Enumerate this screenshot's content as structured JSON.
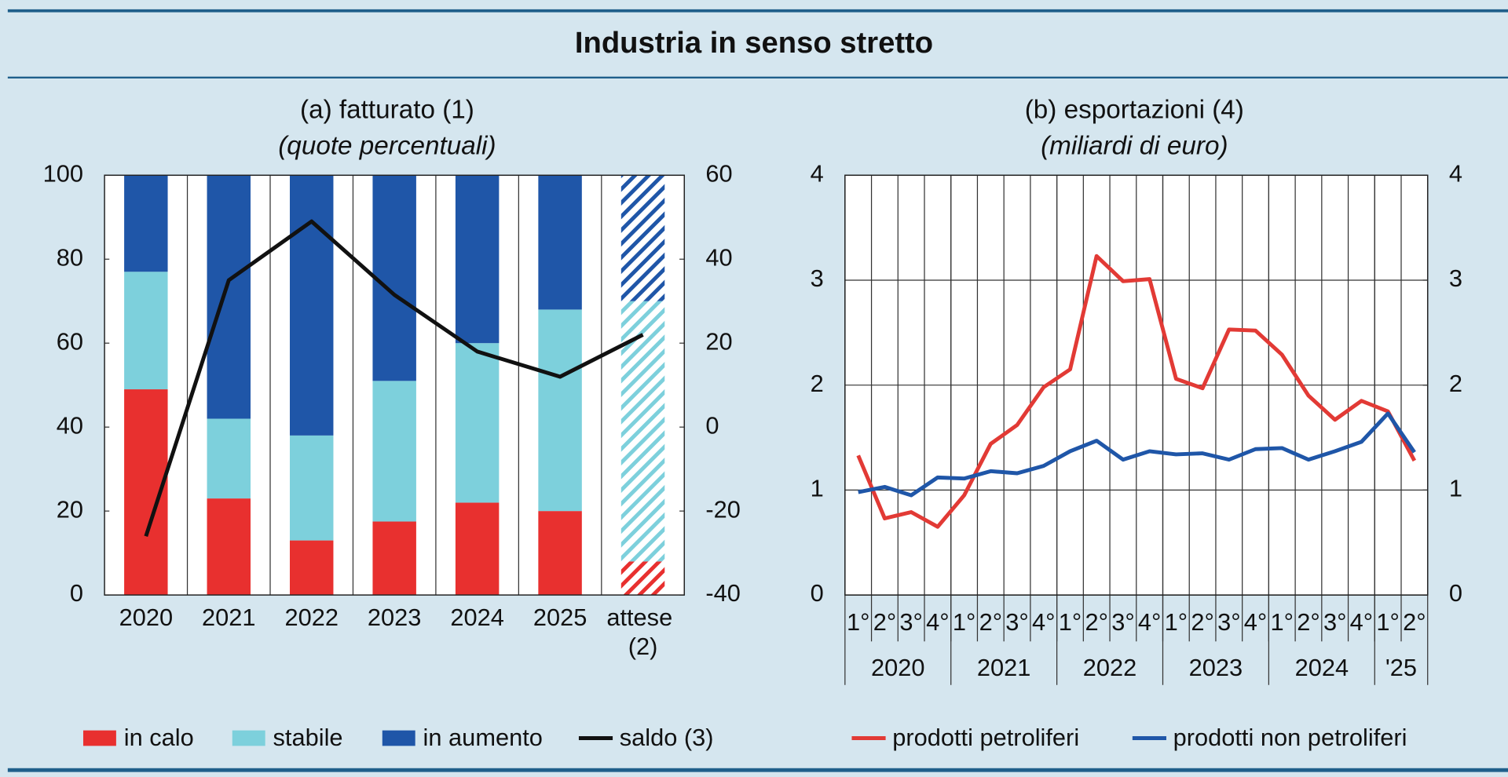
{
  "title": "Industria in senso stretto",
  "chart_data": [
    {
      "type": "bar",
      "title": "(a) fatturato (1)",
      "subtitle": "(quote percentuali)",
      "categories": [
        "2020",
        "2021",
        "2022",
        "2023",
        "2024",
        "2025",
        "attese (2)"
      ],
      "hatched": [
        false,
        false,
        false,
        false,
        false,
        false,
        true
      ],
      "series": [
        {
          "name": "in calo",
          "color": "#e8302f",
          "values": [
            49,
            23,
            13,
            17.5,
            22,
            20,
            8
          ]
        },
        {
          "name": "stabile",
          "color": "#7dd0dc",
          "values": [
            28,
            19,
            25,
            33.5,
            38,
            48,
            62
          ]
        },
        {
          "name": "in aumento",
          "color": "#1f56a8",
          "values": [
            23,
            58,
            62,
            49,
            40,
            32,
            30
          ]
        },
        {
          "name": "saldo (3)",
          "color": "#111111",
          "type": "line",
          "axis": "y2",
          "values": [
            -26,
            35,
            49,
            31.5,
            18,
            12,
            22
          ]
        }
      ],
      "ylim": [
        0,
        100
      ],
      "yticks": [
        0,
        20,
        40,
        60,
        80,
        100
      ],
      "y2lim": [
        -40,
        60
      ],
      "y2ticks": [
        -40,
        -20,
        0,
        20,
        40,
        60
      ],
      "grid": false
    },
    {
      "type": "line",
      "title": "(b) esportazioni (4)",
      "subtitle": "(miliardi di euro)",
      "categories": [
        "1°",
        "2°",
        "3°",
        "4°",
        "1°",
        "2°",
        "3°",
        "4°",
        "1°",
        "2°",
        "3°",
        "4°",
        "1°",
        "2°",
        "3°",
        "4°",
        "1°",
        "2°",
        "3°",
        "4°",
        "1°",
        "2°"
      ],
      "year_groups": [
        {
          "label": "2020",
          "count": 4
        },
        {
          "label": "2021",
          "count": 4
        },
        {
          "label": "2022",
          "count": 4
        },
        {
          "label": "2023",
          "count": 4
        },
        {
          "label": "2024",
          "count": 4
        },
        {
          "label": "'25",
          "count": 2
        }
      ],
      "series": [
        {
          "name": "prodotti petroliferi",
          "color": "#e23a35",
          "values": [
            1.33,
            0.73,
            0.79,
            0.65,
            0.95,
            1.44,
            1.62,
            1.98,
            2.15,
            3.23,
            2.99,
            3.01,
            2.06,
            1.97,
            2.53,
            2.52,
            2.29,
            1.9,
            1.67,
            1.85,
            1.75,
            1.28
          ]
        },
        {
          "name": "prodotti non petroliferi",
          "color": "#1f56a8",
          "values": [
            0.98,
            1.03,
            0.95,
            1.12,
            1.11,
            1.18,
            1.16,
            1.23,
            1.37,
            1.47,
            1.29,
            1.37,
            1.34,
            1.35,
            1.29,
            1.39,
            1.4,
            1.29,
            1.37,
            1.46,
            1.73,
            1.36
          ]
        }
      ],
      "ylim": [
        0,
        4
      ],
      "yticks": [
        0,
        1,
        2,
        3,
        4
      ],
      "y2lim": [
        0,
        4
      ],
      "y2ticks": [
        0,
        1,
        2,
        3,
        4
      ],
      "grid": true
    }
  ]
}
